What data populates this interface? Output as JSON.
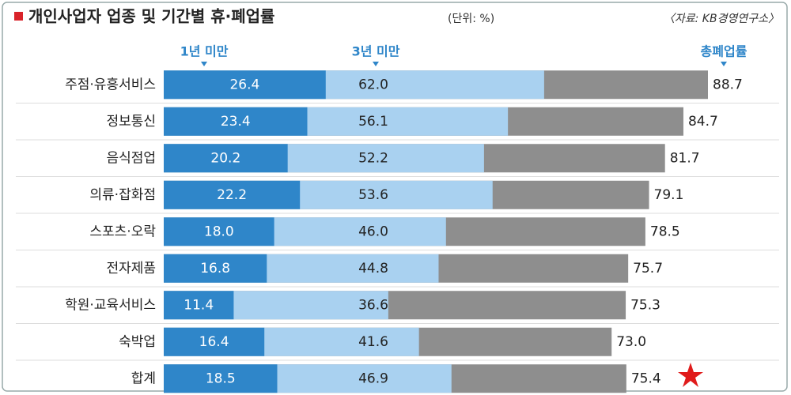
{
  "chart_data": {
    "type": "bar",
    "layout": "overlap",
    "title": "개인사업자 업종 및 기간별 휴·폐업률",
    "subtitle": "(단위: %)",
    "source": "〈자료: KB경영연구소〉",
    "categories": [
      "주점·유흥서비스",
      "정보통신",
      "음식점업",
      "의류·잡화점",
      "스포츠·오락",
      "전자제품",
      "학원·교육서비스",
      "숙박업",
      "합계"
    ],
    "series": [
      {
        "name": "1년 미만",
        "color": "#2f86c9",
        "values": [
          26.4,
          23.4,
          20.2,
          22.2,
          18.0,
          16.8,
          11.4,
          16.4,
          18.5
        ],
        "value_labels": [
          "26.4",
          "23.4",
          "20.2",
          "22.2",
          "18.0",
          "16.8",
          "11.4",
          "16.4",
          "18.5"
        ]
      },
      {
        "name": "3년 미만",
        "color": "#a9d1f0",
        "values": [
          62.0,
          56.1,
          52.2,
          53.6,
          46.0,
          44.8,
          36.6,
          41.6,
          46.9
        ],
        "value_labels": [
          "62.0",
          "56.1",
          "52.2",
          "53.6",
          "46.0",
          "44.8",
          "36.6",
          "41.6",
          "46.9"
        ]
      },
      {
        "name": "총폐업률",
        "color": "#8e8e8e",
        "values": [
          88.7,
          84.7,
          81.7,
          79.1,
          78.5,
          75.7,
          75.3,
          73.0,
          75.4
        ],
        "value_labels": [
          "88.7",
          "84.7",
          "81.7",
          "79.1",
          "78.5",
          "75.7",
          "75.3",
          "73.0",
          "75.4"
        ]
      }
    ],
    "xlim": [
      0,
      88.7
    ]
  }
}
